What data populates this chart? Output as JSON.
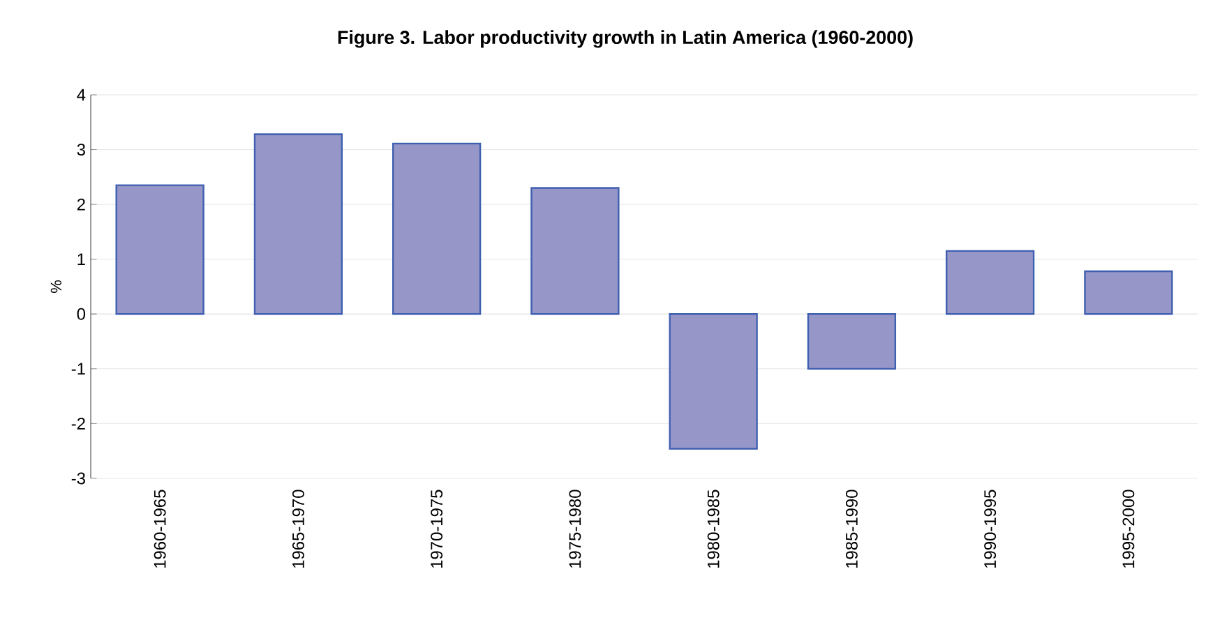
{
  "chart_data": {
    "type": "bar",
    "title": "Figure 3.  Labor productivity growth in Latin America (1960-2000)",
    "ylabel": "%",
    "categories": [
      "1960-1965",
      "1965-1970",
      "1970-1975",
      "1975-1980",
      "1980-1985",
      "1985-1990",
      "1990-1995",
      "1995-2000"
    ],
    "values": [
      2.35,
      3.28,
      3.11,
      2.3,
      -2.46,
      -1.0,
      1.15,
      0.78
    ],
    "color": "#9696c8",
    "ylim": [
      -3,
      4
    ],
    "yticks": [
      -3,
      -2,
      -1,
      0,
      1,
      2,
      3,
      4
    ],
    "grid": "y"
  }
}
